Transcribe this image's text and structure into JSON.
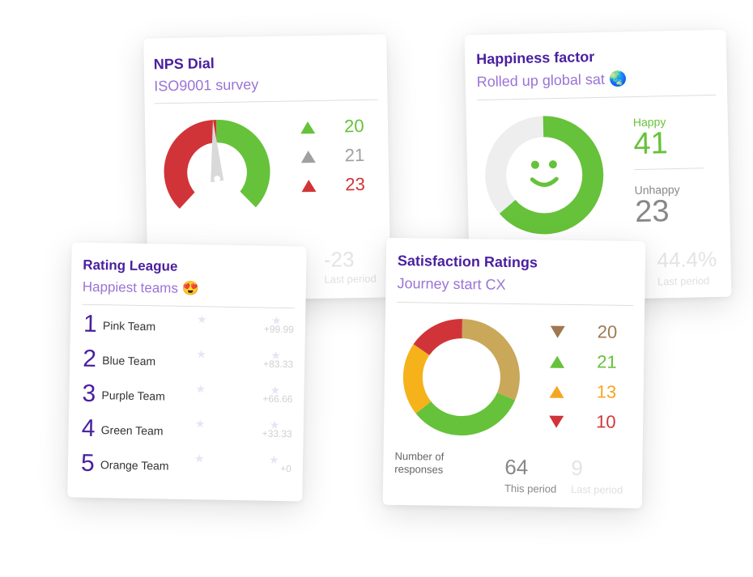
{
  "nps": {
    "title": "NPS Dial",
    "subtitle": "ISO9001 survey",
    "trends": [
      {
        "value": "20",
        "direction": "up",
        "color": "#66c23a"
      },
      {
        "value": "21",
        "direction": "up",
        "color": "#a0a0a0"
      },
      {
        "value": "23",
        "direction": "up",
        "color": "#d13438"
      }
    ],
    "last_value": "-23",
    "last_label": "Last period",
    "dial_colors": {
      "positive": "#66c23a",
      "negative": "#d13438"
    }
  },
  "happiness": {
    "title": "Happiness factor",
    "subtitle": "Rolled up global sat 🌏",
    "happy_label": "Happy",
    "happy_value": "41",
    "unhappy_label": "Unhappy",
    "unhappy_value": "23",
    "last_value": "44.4%",
    "last_label": "Last period",
    "happy_fraction": 0.64,
    "colors": {
      "happy": "#66c23a",
      "unhappy": "#eeeeee"
    }
  },
  "rating": {
    "title": "Rating League",
    "subtitle": "Happiest teams 😍",
    "teams": [
      {
        "rank": "1",
        "name": "Pink Team",
        "score": "+99.99"
      },
      {
        "rank": "2",
        "name": "Blue Team",
        "score": "+83.33"
      },
      {
        "rank": "3",
        "name": "Purple Team",
        "score": "+66.66"
      },
      {
        "rank": "4",
        "name": "Green Team",
        "score": "+33.33"
      },
      {
        "rank": "5",
        "name": "Orange Team",
        "score": "+0"
      }
    ]
  },
  "satisfaction": {
    "title": "Satisfaction Ratings",
    "subtitle": "Journey start CX",
    "items": [
      {
        "value": "20",
        "direction": "down",
        "color": "#a07850"
      },
      {
        "value": "21",
        "direction": "up",
        "color": "#66c23a"
      },
      {
        "value": "13",
        "direction": "up",
        "color": "#f5a623"
      },
      {
        "value": "10",
        "direction": "down",
        "color": "#d13438"
      }
    ],
    "responses_label": "Number of responses",
    "this_value": "64",
    "this_label": "This period",
    "last_value": "9",
    "last_label": "Last period",
    "donut": [
      {
        "value": 20,
        "color": "#c9a85a"
      },
      {
        "value": 21,
        "color": "#66c23a"
      },
      {
        "value": 13,
        "color": "#f5b21b"
      },
      {
        "value": 10,
        "color": "#d13438"
      }
    ]
  }
}
